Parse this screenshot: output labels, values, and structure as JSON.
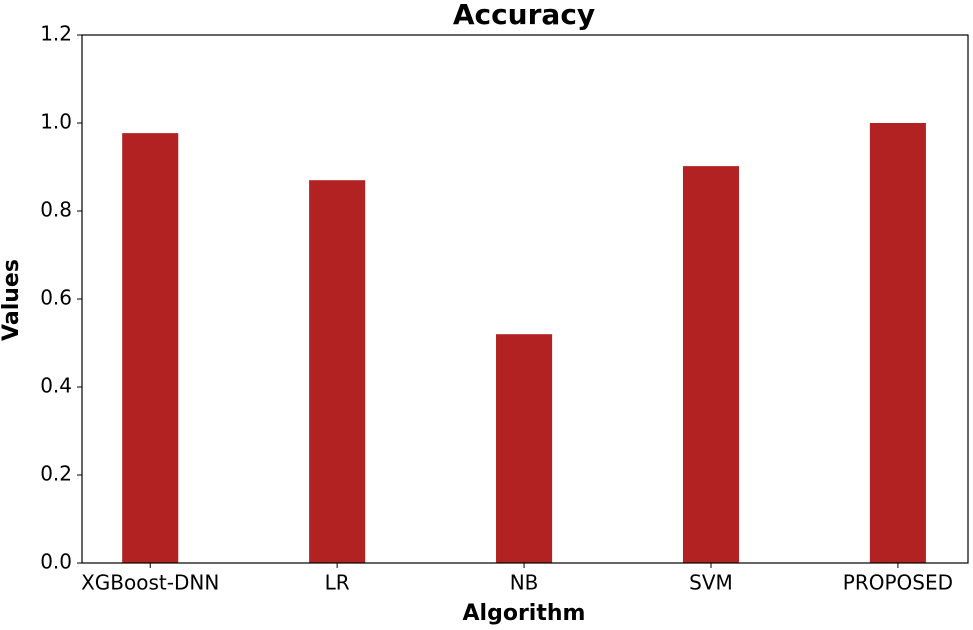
{
  "chart_data": {
    "type": "bar",
    "title": "Accuracy",
    "x_label": "Algorithm",
    "y_label": "Values",
    "categories": [
      "XGBoost-DNN",
      "LR",
      "NB",
      "SVM",
      "PROPOSED"
    ],
    "values": [
      0.977,
      0.87,
      0.52,
      0.902,
      1.0
    ],
    "color": "#b22222",
    "ylim": [
      0,
      1.2
    ],
    "yticks": [
      {
        "value": 0,
        "label": "0.0"
      },
      0.2,
      0.4,
      0.6,
      0.8,
      {
        "value": 1,
        "label": "1.0"
      },
      1.2
    ],
    "grid": false
  }
}
